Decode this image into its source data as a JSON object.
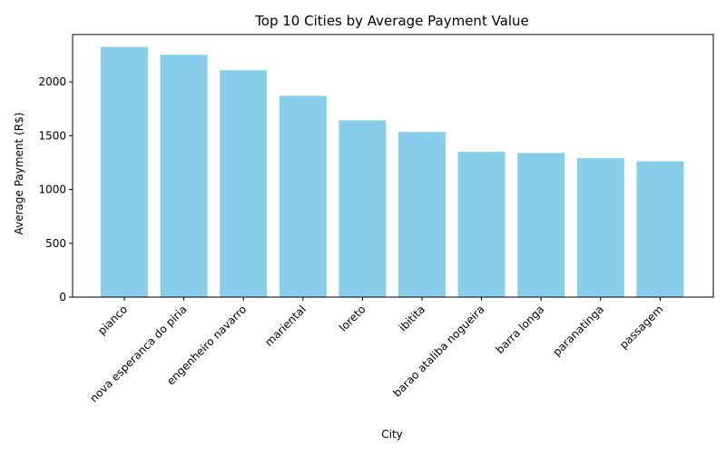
{
  "chart_data": {
    "type": "bar",
    "title": "Top 10 Cities by Average Payment Value",
    "xlabel": "City",
    "ylabel": "Average Payment (R$)",
    "categories": [
      "pianco",
      "nova esperanca do piria",
      "engenheiro navarro",
      "mariental",
      "loreto",
      "ibitita",
      "barao ataliba nogueira",
      "barra longa",
      "paranatinga",
      "passagem"
    ],
    "values": [
      2325,
      2252,
      2108,
      1870,
      1643,
      1535,
      1350,
      1340,
      1292,
      1262
    ],
    "ylim": [
      0,
      2440
    ],
    "yticks": [
      0,
      500,
      1000,
      1500,
      2000
    ],
    "bar_color": "#87ceeb",
    "grid": false,
    "legend": false
  }
}
